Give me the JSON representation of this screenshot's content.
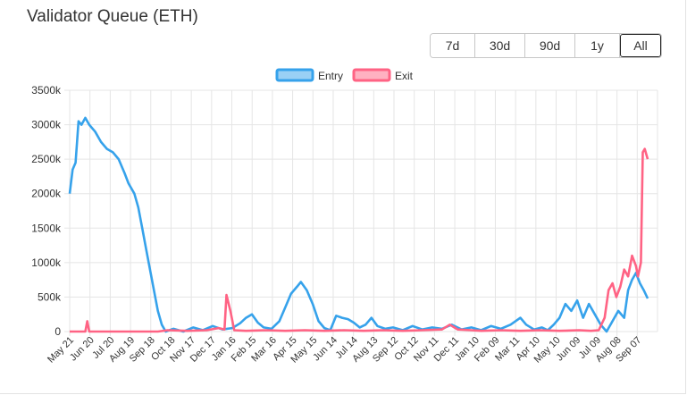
{
  "header": {
    "title": "Validator Queue (ETH)"
  },
  "range_selector": {
    "buttons": [
      {
        "label": "7d",
        "active": false
      },
      {
        "label": "30d",
        "active": false
      },
      {
        "label": "90d",
        "active": false
      },
      {
        "label": "1y",
        "active": false
      },
      {
        "label": "All",
        "active": true
      }
    ]
  },
  "chart_data": {
    "type": "line",
    "ylim": [
      0,
      3500
    ],
    "y_ticks": [
      0,
      500,
      1000,
      1500,
      2000,
      2500,
      3000,
      3500
    ],
    "y_tick_labels": [
      "0",
      "500k",
      "1000k",
      "1500k",
      "2000k",
      "2500k",
      "3000k",
      "3500k"
    ],
    "x_tick_labels": [
      "May 21",
      "Jun 20",
      "Jul 20",
      "Aug 19",
      "Sep 18",
      "Oct 18",
      "Nov 17",
      "Dec 17",
      "Jan 16",
      "Feb 15",
      "Mar 16",
      "Apr 15",
      "May 15",
      "Jun 14",
      "Jul 14",
      "Aug 13",
      "Sep 12",
      "Oct 12",
      "Nov 11",
      "Dec 11",
      "Jan 10",
      "Feb 09",
      "Mar 11",
      "Apr 10",
      "May 10",
      "Jun 09",
      "Jul 09",
      "Aug 08",
      "Sep 07"
    ],
    "x_range": [
      0,
      30
    ],
    "legend": {
      "position": "top"
    },
    "grid": true,
    "series": [
      {
        "name": "Entry",
        "color": "#36a2eb",
        "fill": "#9ad0f5",
        "points": [
          [
            0,
            2000
          ],
          [
            0.15,
            2350
          ],
          [
            0.3,
            2450
          ],
          [
            0.45,
            3050
          ],
          [
            0.6,
            3000
          ],
          [
            0.8,
            3100
          ],
          [
            1.0,
            3000
          ],
          [
            1.3,
            2900
          ],
          [
            1.6,
            2750
          ],
          [
            1.9,
            2650
          ],
          [
            2.2,
            2600
          ],
          [
            2.5,
            2500
          ],
          [
            2.8,
            2300
          ],
          [
            3.0,
            2150
          ],
          [
            3.3,
            2000
          ],
          [
            3.5,
            1800
          ],
          [
            3.7,
            1500
          ],
          [
            3.9,
            1200
          ],
          [
            4.1,
            900
          ],
          [
            4.3,
            600
          ],
          [
            4.5,
            300
          ],
          [
            4.7,
            100
          ],
          [
            4.9,
            0
          ],
          [
            5.3,
            40
          ],
          [
            5.8,
            0
          ],
          [
            6.3,
            60
          ],
          [
            6.8,
            20
          ],
          [
            7.3,
            80
          ],
          [
            7.8,
            30
          ],
          [
            8.3,
            50
          ],
          [
            8.7,
            120
          ],
          [
            9.0,
            200
          ],
          [
            9.3,
            250
          ],
          [
            9.6,
            130
          ],
          [
            9.9,
            60
          ],
          [
            10.3,
            40
          ],
          [
            10.7,
            150
          ],
          [
            11.0,
            350
          ],
          [
            11.3,
            550
          ],
          [
            11.6,
            650
          ],
          [
            11.8,
            720
          ],
          [
            12.1,
            600
          ],
          [
            12.4,
            400
          ],
          [
            12.7,
            150
          ],
          [
            13.0,
            50
          ],
          [
            13.3,
            20
          ],
          [
            13.6,
            230
          ],
          [
            13.9,
            200
          ],
          [
            14.2,
            180
          ],
          [
            14.5,
            130
          ],
          [
            14.8,
            60
          ],
          [
            15.1,
            100
          ],
          [
            15.4,
            200
          ],
          [
            15.7,
            80
          ],
          [
            16.1,
            40
          ],
          [
            16.5,
            60
          ],
          [
            17.0,
            20
          ],
          [
            17.5,
            80
          ],
          [
            18.0,
            30
          ],
          [
            18.5,
            60
          ],
          [
            19.0,
            40
          ],
          [
            19.5,
            100
          ],
          [
            20.0,
            30
          ],
          [
            20.5,
            60
          ],
          [
            21.0,
            20
          ],
          [
            21.5,
            80
          ],
          [
            22.0,
            40
          ],
          [
            22.5,
            100
          ],
          [
            23.0,
            200
          ],
          [
            23.3,
            100
          ],
          [
            23.7,
            30
          ],
          [
            24.1,
            60
          ],
          [
            24.4,
            20
          ],
          [
            24.7,
            100
          ],
          [
            25.0,
            200
          ],
          [
            25.3,
            400
          ],
          [
            25.6,
            300
          ],
          [
            25.9,
            450
          ],
          [
            26.2,
            200
          ],
          [
            26.5,
            400
          ],
          [
            26.8,
            250
          ],
          [
            27.1,
            100
          ],
          [
            27.4,
            0
          ],
          [
            27.7,
            150
          ],
          [
            28.0,
            300
          ],
          [
            28.3,
            200
          ],
          [
            28.5,
            600
          ],
          [
            28.7,
            750
          ],
          [
            28.9,
            850
          ],
          [
            29.1,
            700
          ],
          [
            29.3,
            600
          ],
          [
            29.5,
            480
          ]
        ]
      },
      {
        "name": "Exit",
        "color": "#ff6384",
        "fill": "#ffb1c1",
        "points": [
          [
            0,
            0
          ],
          [
            0.8,
            0
          ],
          [
            0.9,
            150
          ],
          [
            1.0,
            0
          ],
          [
            4.5,
            0
          ],
          [
            5.0,
            20
          ],
          [
            6.0,
            10
          ],
          [
            7.0,
            20
          ],
          [
            7.6,
            50
          ],
          [
            7.9,
            30
          ],
          [
            8.0,
            530
          ],
          [
            8.2,
            300
          ],
          [
            8.4,
            20
          ],
          [
            9.0,
            10
          ],
          [
            10.0,
            20
          ],
          [
            11.0,
            10
          ],
          [
            12.0,
            20
          ],
          [
            13.0,
            10
          ],
          [
            14.0,
            20
          ],
          [
            15.0,
            10
          ],
          [
            16.0,
            20
          ],
          [
            17.0,
            10
          ],
          [
            18.0,
            20
          ],
          [
            19.0,
            30
          ],
          [
            19.4,
            100
          ],
          [
            19.8,
            30
          ],
          [
            20.5,
            20
          ],
          [
            21.0,
            10
          ],
          [
            22.0,
            20
          ],
          [
            23.0,
            10
          ],
          [
            24.0,
            20
          ],
          [
            25.0,
            10
          ],
          [
            26.0,
            20
          ],
          [
            26.6,
            10
          ],
          [
            27.0,
            20
          ],
          [
            27.3,
            200
          ],
          [
            27.5,
            600
          ],
          [
            27.7,
            700
          ],
          [
            27.9,
            500
          ],
          [
            28.1,
            650
          ],
          [
            28.3,
            900
          ],
          [
            28.5,
            800
          ],
          [
            28.7,
            1100
          ],
          [
            28.9,
            950
          ],
          [
            29.0,
            800
          ],
          [
            29.15,
            1000
          ],
          [
            29.25,
            2600
          ],
          [
            29.35,
            2650
          ],
          [
            29.5,
            2500
          ]
        ]
      }
    ]
  }
}
